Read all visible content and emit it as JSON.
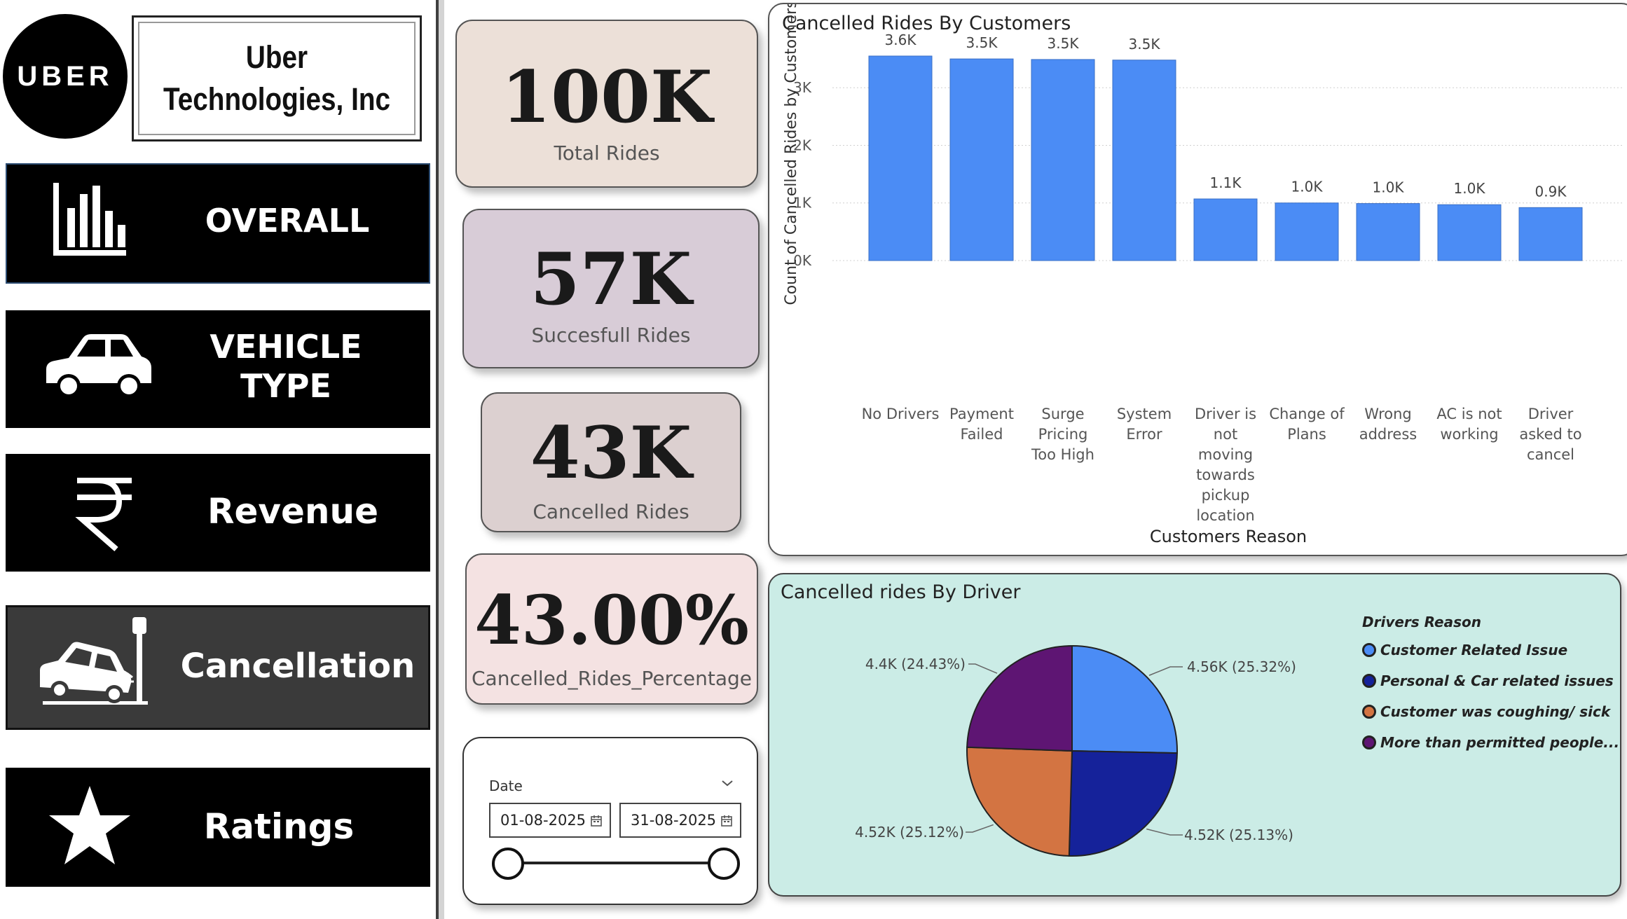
{
  "sidebar": {
    "logo_text": "UBER",
    "company_name": "Uber Technologies, Inc",
    "nav": [
      {
        "label": "OVERALL",
        "icon": "bar-chart-icon"
      },
      {
        "label": "VEHICLE TYPE",
        "icon": "car-icon"
      },
      {
        "label": "Revenue",
        "icon": "rupee-icon"
      },
      {
        "label": "Cancellation",
        "icon": "car-crash-icon",
        "active": true
      },
      {
        "label": "Ratings",
        "icon": "star-icon"
      }
    ]
  },
  "kpis": {
    "total": {
      "value": "100K",
      "label": "Total Rides"
    },
    "success": {
      "value": "57K",
      "label": "Succesfull Rides"
    },
    "cancelled": {
      "value": "43K",
      "label": "Cancelled Rides"
    },
    "percent": {
      "value": "43.00%",
      "label": "Cancelled_Rides_Percentage"
    }
  },
  "slicer": {
    "title": "Date",
    "start": "01-08-2025",
    "end": "31-08-2025"
  },
  "colors": {
    "bar": "#4b8cf5",
    "pie": [
      "#4b8cf5",
      "#15229a",
      "#d37442",
      "#5e1573"
    ]
  },
  "chart_data": [
    {
      "type": "bar",
      "title": "Cancelled Rides By Customers",
      "xlabel": "Customers Reason",
      "ylabel": "Count of Cancelled Rides by Customers",
      "categories": [
        "No Drivers",
        "Payment Failed",
        "Surge Pricing Too High",
        "System Error",
        "Driver is not moving towards pickup location",
        "Change of Plans",
        "Wrong address",
        "AC is not working",
        "Driver asked to cancel"
      ],
      "values": [
        3550,
        3500,
        3490,
        3480,
        1070,
        1000,
        990,
        970,
        920
      ],
      "data_labels": [
        "3.6K",
        "3.5K",
        "3.5K",
        "3.5K",
        "1.1K",
        "1.0K",
        "1.0K",
        "1.0K",
        "0.9K"
      ],
      "yticks": [
        "0K",
        "1K",
        "2K",
        "3K"
      ],
      "ylim": [
        0,
        3800
      ],
      "grid": true
    },
    {
      "type": "pie",
      "title": "Cancelled rides By Driver",
      "legend_title": "Drivers Reason",
      "legend_position": "right",
      "slices": [
        {
          "name": "Customer Related Issue",
          "value": 4560,
          "label": "4.56K (25.32%)"
        },
        {
          "name": "Personal & Car related issues",
          "value": 4520,
          "label": "4.52K (25.13%)"
        },
        {
          "name": "Customer was coughing/ sick",
          "value": 4520,
          "label": "4.52K (25.12%)"
        },
        {
          "name": "More than permitted people...",
          "value": 4400,
          "label": "4.4K (24.43%)"
        }
      ]
    }
  ]
}
